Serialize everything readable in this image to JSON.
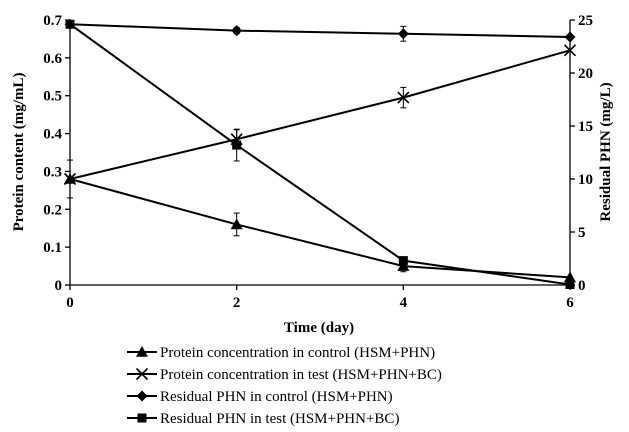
{
  "chart_data": {
    "type": "line",
    "xlabel": "Time (day)",
    "ylabel_left": "Protein content (mg/mL)",
    "ylabel_right": "Residual PHN (mg/L)",
    "x": [
      0,
      2,
      4,
      6
    ],
    "xlim": [
      0,
      6
    ],
    "ylim_left": [
      0,
      0.7
    ],
    "ylim_right": [
      0,
      25
    ],
    "x_ticks": [
      "0",
      "2",
      "4",
      "6"
    ],
    "y_left_ticks": [
      "0",
      "0.1",
      "0.2",
      "0.3",
      "0.4",
      "0.5",
      "0.6",
      "0.7"
    ],
    "y_right_ticks": [
      "0",
      "5",
      "10",
      "15",
      "20",
      "25"
    ],
    "grid": false,
    "legend_position": "bottom",
    "series": [
      {
        "name": "Protein concentration in control (HSM+PHN)",
        "axis": "left",
        "marker": "triangle",
        "values": [
          0.28,
          0.16,
          0.05,
          0.02
        ],
        "errors": [
          0.05,
          0.03,
          0.015,
          0
        ]
      },
      {
        "name": "Protein concentration in test (HSM+PHN+BC)",
        "axis": "left",
        "marker": "x",
        "values": [
          0.28,
          0.385,
          0.495,
          0.62
        ],
        "errors": [
          0,
          0.025,
          0.027,
          0
        ]
      },
      {
        "name": "Residual PHN in control (HSM+PHN)",
        "axis": "right",
        "marker": "diamond",
        "values": [
          24.6,
          24.0,
          23.7,
          23.4
        ],
        "errors": [
          0,
          0.3,
          0.7,
          0
        ]
      },
      {
        "name": "Residual PHN in test (HSM+PHN+BC)",
        "axis": "right",
        "marker": "square",
        "values": [
          24.6,
          13.2,
          2.3,
          0.05
        ],
        "errors": [
          0,
          1.5,
          0.2,
          0
        ]
      }
    ]
  }
}
